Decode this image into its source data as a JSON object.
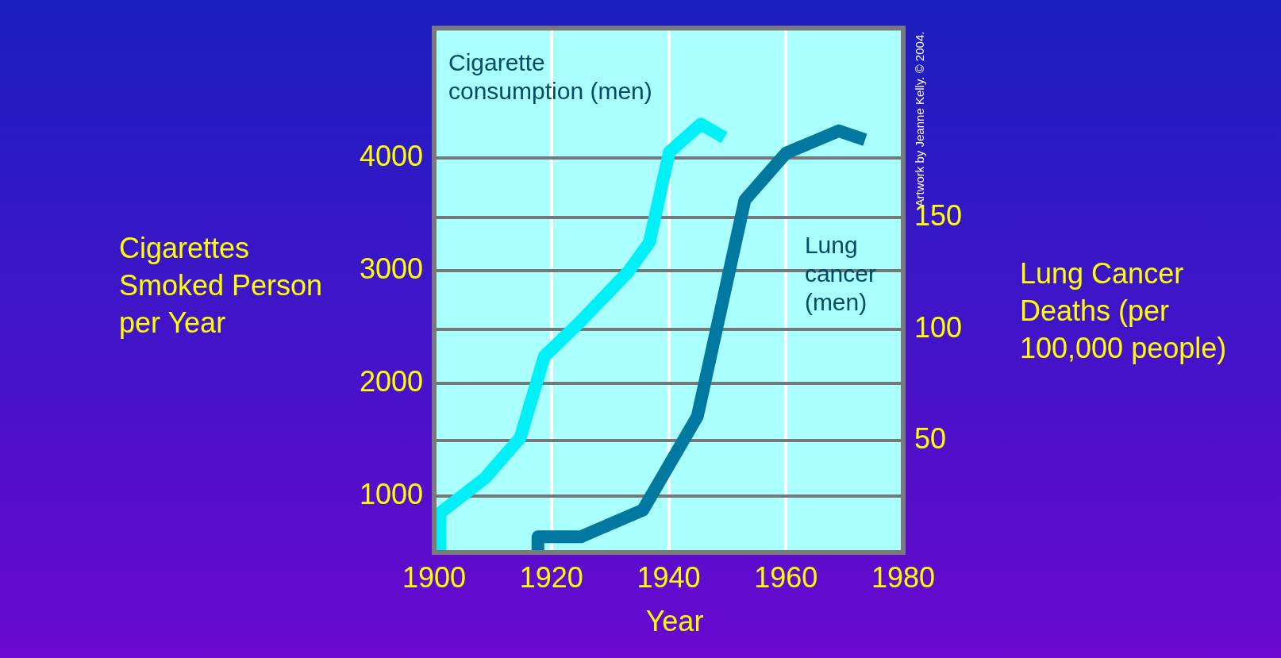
{
  "chart_data": {
    "type": "line",
    "xlabel": "Year",
    "ylabel": "Cigarettes Smoked Person per Year",
    "y2label": "Lung Cancer Deaths (per 100,000 people)",
    "annotations": [
      "Artwork by Jeanne Kelly. © 2004."
    ],
    "series": [
      {
        "name": "Cigarette consumption (men)",
        "color": "#00f0f8",
        "x": [
          1901,
          1901,
          1908.7,
          1914.7,
          1918.8,
          1924.8,
          1933.1,
          1936.7,
          1940.1,
          1945.5,
          1949.5
        ],
        "values": [
          500,
          850,
          1160,
          1520,
          2240,
          2540,
          2990,
          3250,
          4050,
          4300,
          4180
        ]
      },
      {
        "name": "Lung cancer (men)",
        "color": "#0078a0",
        "axis": "y2",
        "x": [
          1917.7,
          1917.7,
          1925,
          1935.6,
          1944.9,
          1953,
          1960,
          1969,
          1973.5
        ],
        "values": [
          0,
          7,
          7,
          19,
          61,
          158,
          179,
          189,
          185
        ]
      }
    ],
    "xlim": [
      1900,
      1980
    ],
    "xticks": [
      1900,
      1920,
      1940,
      1960,
      1980
    ],
    "ylim": [
      500,
      5150
    ],
    "yticks": [
      1000,
      2000,
      3000,
      4000
    ],
    "y2lim": [
      0,
      235
    ],
    "y2ticks": [
      50,
      100,
      150
    ],
    "grid": true,
    "legend": false,
    "marker": "none",
    "line_style": "solid"
  }
}
